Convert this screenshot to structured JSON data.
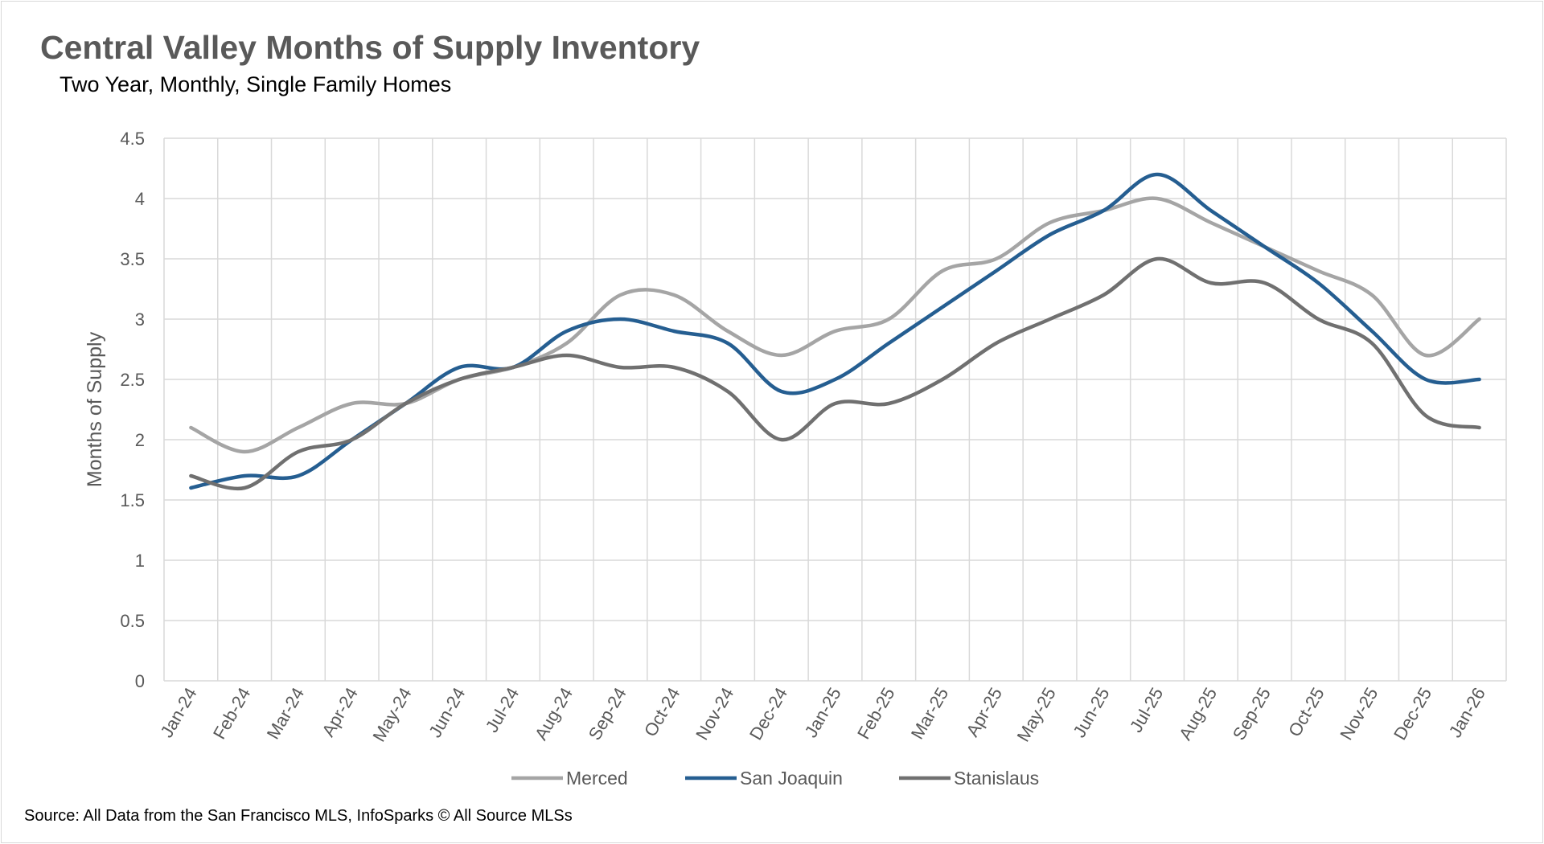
{
  "chart_data": {
    "type": "line",
    "title": "Central Valley Months of Supply Inventory",
    "subtitle": "Two Year, Monthly, Single Family Homes",
    "xlabel": "",
    "ylabel": "Months of Supply",
    "ylim": [
      0,
      4.5
    ],
    "yticks": [
      "0",
      "0.5",
      "1",
      "1.5",
      "2",
      "2.5",
      "3",
      "3.5",
      "4",
      "4.5"
    ],
    "grid": true,
    "legend": "bottom",
    "categories": [
      "Jan-24",
      "Feb-24",
      "Mar-24",
      "Apr-24",
      "May-24",
      "Jun-24",
      "Jul-24",
      "Aug-24",
      "Sep-24",
      "Oct-24",
      "Nov-24",
      "Dec-24",
      "Jan-25",
      "Feb-25",
      "Mar-25",
      "Apr-25",
      "May-25",
      "Jun-25",
      "Jul-25",
      "Aug-25",
      "Sep-25",
      "Oct-25",
      "Nov-25",
      "Dec-25",
      "Jan-26"
    ],
    "series": [
      {
        "name": "Merced",
        "color": "#a5a5a5",
        "values": [
          2.1,
          1.9,
          2.1,
          2.3,
          2.3,
          2.5,
          2.6,
          2.8,
          3.2,
          3.2,
          2.9,
          2.7,
          2.9,
          3.0,
          3.4,
          3.5,
          3.8,
          3.9,
          4.0,
          3.8,
          3.6,
          3.4,
          3.2,
          2.7,
          3.0
        ]
      },
      {
        "name": "San Joaquin",
        "color": "#255e91",
        "values": [
          1.6,
          1.7,
          1.7,
          2.0,
          2.3,
          2.6,
          2.6,
          2.9,
          3.0,
          2.9,
          2.8,
          2.4,
          2.5,
          2.8,
          3.1,
          3.4,
          3.7,
          3.9,
          4.2,
          3.9,
          3.6,
          3.3,
          2.9,
          2.5,
          2.5
        ]
      },
      {
        "name": "Stanislaus",
        "color": "#707070",
        "values": [
          1.7,
          1.6,
          1.9,
          2.0,
          2.3,
          2.5,
          2.6,
          2.7,
          2.6,
          2.6,
          2.4,
          2.0,
          2.3,
          2.3,
          2.5,
          2.8,
          3.0,
          3.2,
          3.5,
          3.3,
          3.3,
          3.0,
          2.8,
          2.2,
          2.1
        ]
      }
    ]
  },
  "source": "Source: All Data from the San Francisco MLS, InfoSparks © All Source MLSs"
}
